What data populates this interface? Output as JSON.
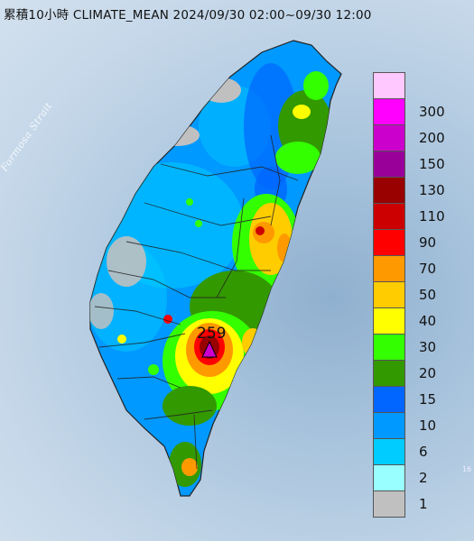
{
  "title": "累積10小時 CLIMATE_MEAN 2024/09/30 02:00~09/30 12:00",
  "strait_label": "Formosa Strait",
  "max_marker": {
    "value": "259"
  },
  "corner_text": "16",
  "legend": [
    {
      "label": "300",
      "color": "#ffc8ff"
    },
    {
      "label": "200",
      "color": "#ff00ff"
    },
    {
      "label": "150",
      "color": "#cc00cc"
    },
    {
      "label": "130",
      "color": "#990099"
    },
    {
      "label": "110",
      "color": "#990000"
    },
    {
      "label": "90",
      "color": "#cc0000"
    },
    {
      "label": "70",
      "color": "#ff0000"
    },
    {
      "label": "50",
      "color": "#ff9900"
    },
    {
      "label": "40",
      "color": "#ffcc00"
    },
    {
      "label": "30",
      "color": "#ffff00"
    },
    {
      "label": "20",
      "color": "#33ff00"
    },
    {
      "label": "15",
      "color": "#339900"
    },
    {
      "label": "10",
      "color": "#0066ff"
    },
    {
      "label": "6",
      "color": "#0099ff"
    },
    {
      "label": "2",
      "color": "#00ccff"
    },
    {
      "label": "1",
      "color": "#99ffff"
    },
    {
      "label": "",
      "color": "#c0c0c0"
    }
  ]
}
